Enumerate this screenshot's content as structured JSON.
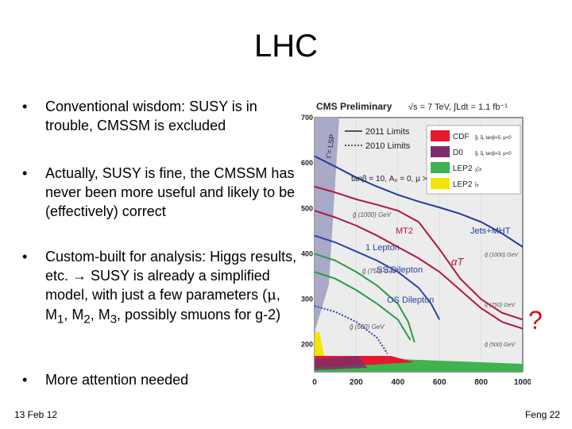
{
  "slide": {
    "title": "LHC",
    "bullets": [
      {
        "symbol": "•",
        "text": "Conventional wisdom: SUSY is in trouble, CMSSM is excluded"
      },
      {
        "symbol": "•",
        "text": "Actually, SUSY is fine, the CMSSM has never been more useful and likely to be (effectively) correct"
      },
      {
        "symbol": "•",
        "text_parts": {
          "a": "Custom-built for analysis: Higgs results, etc. ",
          "arrow": "→",
          "b": " SUSY is already a simplified model, with just a few parameters (",
          "mu": "μ",
          "c": ", M",
          "s1": "1",
          "d": ", M",
          "s2": "2",
          "e": ", M",
          "s3": "3",
          "f": ", possibly smuons for g-2)"
        }
      },
      {
        "symbol": "•",
        "text": "More attention needed"
      }
    ],
    "footer_left": "13 Feb 12",
    "footer_right": "Feng 22",
    "annotation": "?"
  },
  "chart_data": {
    "type": "line",
    "title": "CMS Preliminary",
    "subtitle": "√s = 7 TeV, ∫Ldt = 1.1 fb⁻¹",
    "xlabel": "",
    "ylabel": "",
    "xlim": [
      0,
      1000
    ],
    "ylim": [
      140,
      700
    ],
    "x_ticks": [
      "0",
      "200",
      "400",
      "600",
      "800",
      "1000"
    ],
    "y_ticks": [
      "200",
      "300",
      "400",
      "500",
      "600",
      "700"
    ],
    "param_text": "tanβ = 10, A₀ = 0, μ > 0",
    "lsp_label": "τ̃ = LSP",
    "limit_legend": [
      {
        "name": "2011 Limits",
        "style": "solid"
      },
      {
        "name": "2010 Limits",
        "style": "dotted"
      }
    ],
    "experiment_legend": [
      {
        "name": "CDF",
        "note": "g̃, q̃, tanβ=5, μ<0",
        "color": "#e8192c"
      },
      {
        "name": "D0",
        "note": "g̃, q̃, tanβ=3, μ<0",
        "color": "#7b2d6e"
      },
      {
        "name": "LEP2",
        "note": "χ̃₁±",
        "color": "#3fb34f"
      },
      {
        "name": "LEP2",
        "note": "l̃±",
        "color": "#f2e600"
      }
    ],
    "analysis_labels": [
      "MT2",
      "1 Lepton",
      "SS Dilepton",
      "OS Dilepton",
      "Jets+MHT",
      "αT"
    ],
    "gluino_labels": [
      "g̃ (1000) GeV",
      "g̃ (750) GeV",
      "g̃ (500) GeV",
      "q̃ (1000) GeV",
      "q̃ (750) GeV",
      "q̃ (500) GeV"
    ],
    "series": [
      {
        "name": "Jets+MHT",
        "color": "#1f3b9e",
        "style": "solid",
        "x": [
          0,
          100,
          200,
          300,
          400,
          500,
          600,
          700,
          800,
          900,
          1000
        ],
        "y": [
          615,
          592,
          568,
          548,
          530,
          515,
          502,
          488,
          470,
          445,
          415
        ]
      },
      {
        "name": "MT2",
        "color": "#b2183a",
        "style": "solid",
        "x": [
          0,
          100,
          200,
          300,
          400,
          500,
          600,
          700,
          800,
          900,
          1000
        ],
        "y": [
          548,
          535,
          520,
          508,
          495,
          470,
          410,
          345,
          300,
          270,
          255
        ]
      },
      {
        "name": "1 Lepton",
        "color": "#2a43a8",
        "style": "solid",
        "x": [
          0,
          100,
          200,
          300,
          400,
          500,
          560,
          600
        ],
        "y": [
          440,
          425,
          405,
          385,
          360,
          325,
          290,
          255
        ]
      },
      {
        "name": "SS Dilepton",
        "color": "#2a9a4a",
        "style": "solid",
        "x": [
          0,
          100,
          200,
          300,
          400,
          450,
          480
        ],
        "y": [
          400,
          385,
          360,
          330,
          290,
          250,
          205
        ]
      },
      {
        "name": "OS Dilepton",
        "color": "#2a9a4a",
        "style": "solid",
        "x": [
          0,
          100,
          200,
          300,
          400,
          460
        ],
        "y": [
          360,
          345,
          320,
          290,
          255,
          210
        ]
      },
      {
        "name": "αT",
        "color": "#b2183a",
        "style": "solid",
        "x": [
          0,
          100,
          200,
          300,
          400,
          500,
          600,
          700,
          800,
          900,
          1000
        ],
        "y": [
          495,
          480,
          462,
          440,
          415,
          390,
          360,
          320,
          280,
          250,
          235
        ]
      },
      {
        "name": "2010 Limits",
        "color": "#2a43a8",
        "style": "dotted",
        "x": [
          0,
          100,
          200,
          300,
          350
        ],
        "y": [
          285,
          272,
          250,
          215,
          180
        ]
      }
    ]
  }
}
